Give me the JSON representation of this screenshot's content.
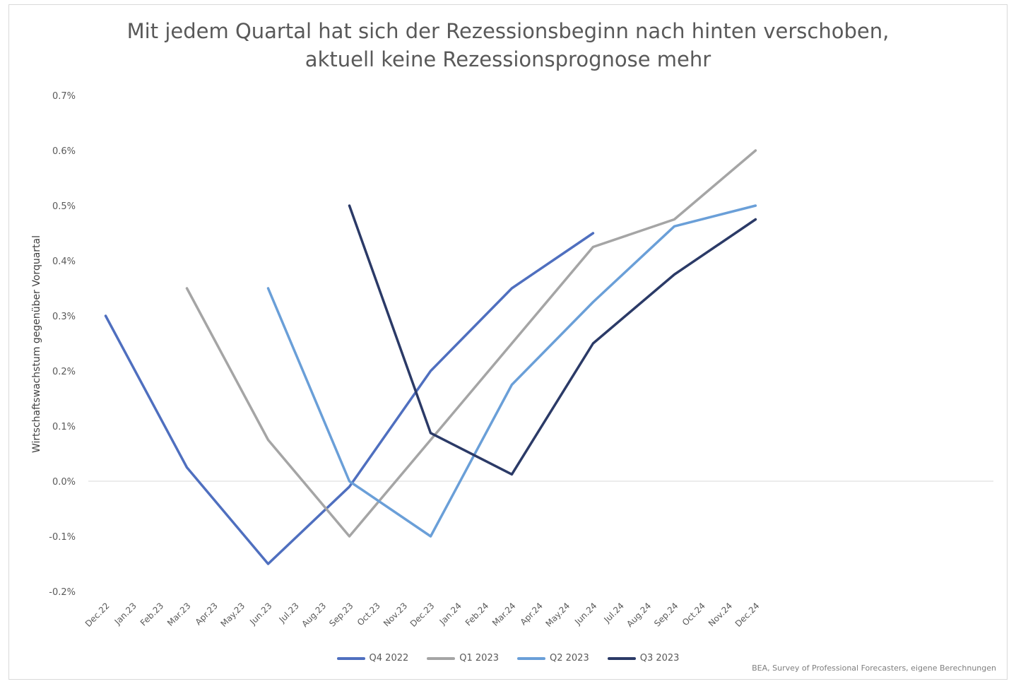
{
  "chart_data": {
    "type": "line",
    "title": [
      "Mit jedem Quartal hat sich der Rezessionsbeginn nach hinten verschoben,",
      "aktuell keine Rezessionsprognose mehr"
    ],
    "ylabel": "Wirtschaftswachstum gegenüber Vorquartal",
    "xlabel": "",
    "ylim": [
      -0.2,
      0.7
    ],
    "yticks": [
      "-0.2%",
      "-0.1%",
      "0.0%",
      "0.1%",
      "0.2%",
      "0.3%",
      "0.4%",
      "0.5%",
      "0.6%",
      "0.7%"
    ],
    "ytick_values": [
      -0.2,
      -0.1,
      0.0,
      0.1,
      0.2,
      0.3,
      0.4,
      0.5,
      0.6,
      0.7
    ],
    "categories": [
      "Dec.22",
      "Jan.23",
      "Feb.23",
      "Mar.23",
      "Apr.23",
      "May.23",
      "Jun.23",
      "Jul.23",
      "Aug.23",
      "Sep.23",
      "Oct.23",
      "Nov.23",
      "Dec.23",
      "Jan.24",
      "Feb.24",
      "Mar.24",
      "Apr.24",
      "May.24",
      "Jun.24",
      "Jul.24",
      "Aug.24",
      "Sep.24",
      "Oct.24",
      "Nov.24",
      "Dec.24"
    ],
    "grid": false,
    "legend_position": "bottom",
    "series": [
      {
        "name": "Q4 2022",
        "color": "#4f6fbf",
        "points": [
          [
            "Dec.22",
            0.3
          ],
          [
            "Mar.23",
            0.025
          ],
          [
            "Jun.23",
            -0.15
          ],
          [
            "Sep.23",
            -0.01
          ],
          [
            "Dec.23",
            0.2
          ],
          [
            "Mar.24",
            0.35
          ],
          [
            "Jun.24",
            0.45
          ]
        ]
      },
      {
        "name": "Q1 2023",
        "color": "#a5a5a5",
        "points": [
          [
            "Mar.23",
            0.35
          ],
          [
            "Jun.23",
            0.075
          ],
          [
            "Sep.23",
            -0.1
          ],
          [
            "Dec.23",
            0.075
          ],
          [
            "Mar.24",
            0.25
          ],
          [
            "Jun.24",
            0.425
          ],
          [
            "Sep.24",
            0.475
          ],
          [
            "Dec.24",
            0.6
          ]
        ]
      },
      {
        "name": "Q2 2023",
        "color": "#6a9fd8",
        "points": [
          [
            "Jun.23",
            0.35
          ],
          [
            "Sep.23",
            0.0
          ],
          [
            "Dec.23",
            -0.1
          ],
          [
            "Mar.24",
            0.175
          ],
          [
            "Jun.24",
            0.325
          ],
          [
            "Sep.24",
            0.4625
          ],
          [
            "Dec.24",
            0.5
          ]
        ]
      },
      {
        "name": "Q3 2023",
        "color": "#2b3a67",
        "points": [
          [
            "Sep.23",
            0.5
          ],
          [
            "Dec.23",
            0.0875
          ],
          [
            "Mar.24",
            0.0125
          ],
          [
            "Jun.24",
            0.25
          ],
          [
            "Sep.24",
            0.375
          ],
          [
            "Dec.24",
            0.475
          ]
        ]
      }
    ],
    "source": "BEA, Survey of Professional Forecasters, eigene Berechnungen"
  }
}
